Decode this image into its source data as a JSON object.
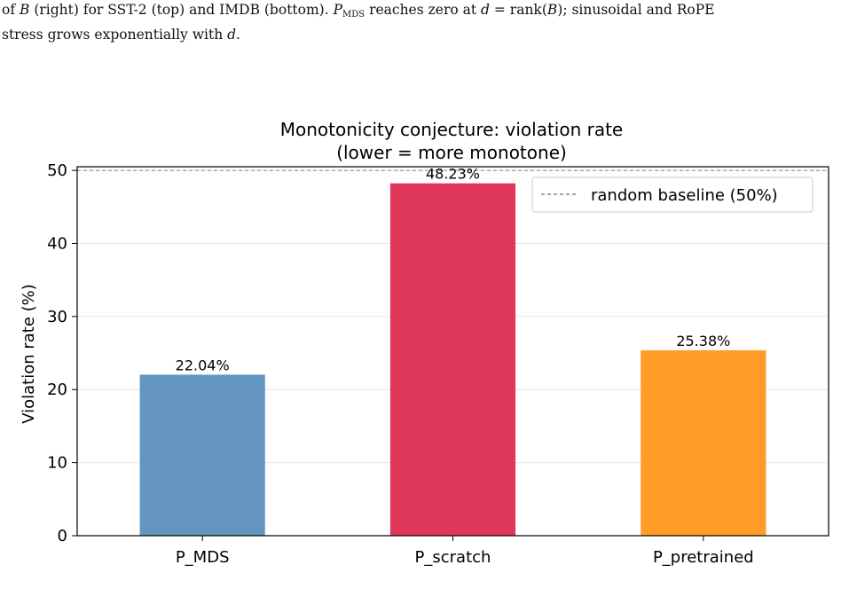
{
  "caption": {
    "line1_a": "of ",
    "line1_b": "B",
    "line1_c": " (right) for SST-2 (top) and IMDB (bottom). ",
    "line1_p": "P",
    "line1_sub": "MDS",
    "line1_d": " reaches zero at ",
    "line1_e": "d",
    "line1_f": " = rank(",
    "line1_g": "B",
    "line1_h": "); sinusoidal and RoPE",
    "line2_a": "stress grows exponentially with ",
    "line2_b": "d",
    "line2_c": "."
  },
  "chart_data": {
    "type": "bar",
    "title": "Monotonicity conjecture: violation rate",
    "subtitle": "(lower = more monotone)",
    "xlabel": "",
    "ylabel": "Violation rate (%)",
    "categories": [
      "P_MDS",
      "P_scratch",
      "P_pretrained"
    ],
    "values": [
      22.04,
      48.23,
      25.38
    ],
    "value_labels": [
      "22.04%",
      "48.23%",
      "25.38%"
    ],
    "colors": [
      "#6395bf",
      "#e0385a",
      "#ff9b26"
    ],
    "ylim": [
      0,
      50.5
    ],
    "yticks": [
      0,
      10,
      20,
      30,
      40,
      50
    ],
    "grid": "y",
    "baseline": {
      "value": 50,
      "label": "random baseline (50%)",
      "color": "#888888",
      "style": "dashed"
    },
    "legend_position": "top-right"
  }
}
